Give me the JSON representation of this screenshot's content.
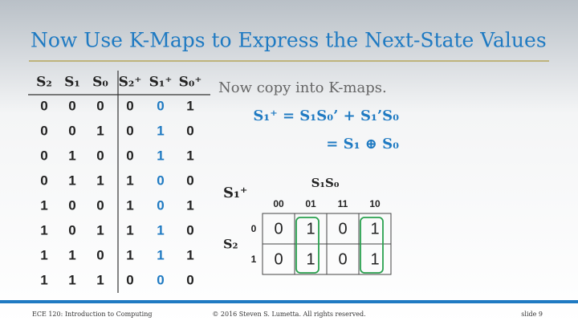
{
  "header": {
    "title": "Now Use K-Maps to Express the Next-State Values"
  },
  "table": {
    "columns": [
      "S₂",
      "S₁",
      "S₀",
      "S₂⁺",
      "S₁⁺",
      "S₀⁺"
    ],
    "rows": [
      [
        0,
        0,
        0,
        0,
        0,
        1
      ],
      [
        0,
        0,
        1,
        0,
        1,
        0
      ],
      [
        0,
        1,
        0,
        0,
        1,
        1
      ],
      [
        0,
        1,
        1,
        1,
        0,
        0
      ],
      [
        1,
        0,
        0,
        1,
        0,
        1
      ],
      [
        1,
        0,
        1,
        1,
        1,
        0
      ],
      [
        1,
        1,
        0,
        1,
        1,
        1
      ],
      [
        1,
        1,
        1,
        0,
        0,
        0
      ]
    ]
  },
  "text": {
    "intro": "Now copy into K-maps.",
    "equation": "S₁⁺ = S₁S₀’ + S₁’S₀",
    "simplified": "= S₁ ⊕ S₀"
  },
  "kmap": {
    "output": "S₁⁺",
    "column_variables": "S₁S₀",
    "row_variable": "S₂",
    "column_labels": [
      "00",
      "01",
      "11",
      "10"
    ],
    "row_labels": [
      "0",
      "1"
    ],
    "cells": [
      [
        0,
        1,
        0,
        1
      ],
      [
        0,
        1,
        0,
        1
      ]
    ]
  },
  "footer": {
    "course": "ECE 120: Introduction to Computing",
    "copyright": "© 2016 Steven S. Lumetta.  All rights reserved.",
    "slide": "slide 9"
  }
}
